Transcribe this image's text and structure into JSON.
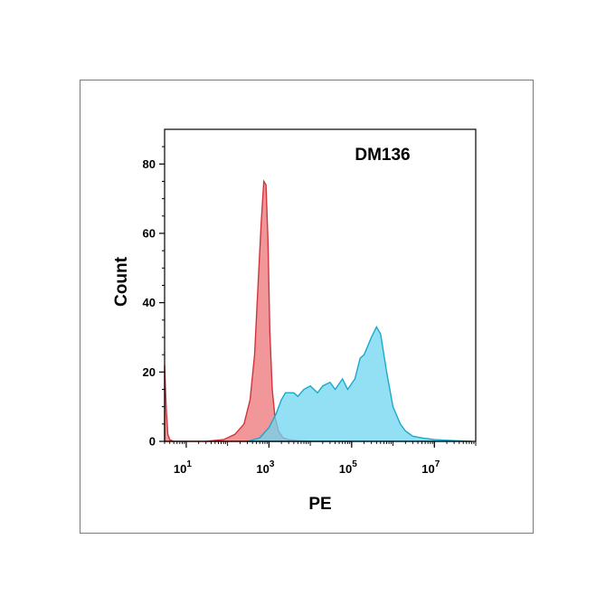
{
  "chart_data": {
    "type": "area",
    "xlabel": "PE",
    "ylabel": "Count",
    "x_scale": "log",
    "xlim": [
      3,
      100000000
    ],
    "ylim": [
      0,
      90
    ],
    "annotation": "DM136",
    "x_ticks": [
      {
        "value": 10,
        "base": "10",
        "exp": "1"
      },
      {
        "value": 1000,
        "base": "10",
        "exp": "3"
      },
      {
        "value": 100000,
        "base": "10",
        "exp": "5"
      },
      {
        "value": 10000000,
        "base": "10",
        "exp": "7"
      }
    ],
    "y_ticks": [
      0,
      20,
      40,
      60,
      80
    ],
    "series": [
      {
        "color": "#f08c8e",
        "edge": "#d0353d",
        "x": [
          3,
          3.3,
          3.6,
          4,
          5,
          10,
          30,
          80,
          150,
          250,
          350,
          450,
          550,
          650,
          750,
          850,
          950,
          1050,
          1200,
          1400,
          1700,
          2200,
          3000,
          5000,
          10000,
          30000,
          100000
        ],
        "y": [
          22,
          9,
          2,
          0.5,
          0,
          0,
          0,
          0.5,
          2,
          5,
          12,
          25,
          46,
          63,
          75,
          74,
          58,
          32,
          15,
          7,
          3,
          1,
          0.5,
          0.2,
          0,
          0,
          0
        ]
      },
      {
        "color": "#6fd6f0",
        "edge": "#1aa9c9",
        "x": [
          300,
          600,
          1000,
          1500,
          2000,
          2500,
          3000,
          4000,
          5000,
          7000,
          10000,
          15000,
          20000,
          30000,
          40000,
          60000,
          80000,
          120000,
          160000,
          200000,
          300000,
          400000,
          500000,
          700000,
          1000000,
          1500000,
          2000000,
          3000000,
          5000000,
          10000000,
          30000000,
          80000000
        ],
        "y": [
          0,
          1,
          4,
          8,
          12,
          14,
          14,
          14,
          13,
          15,
          16,
          14,
          16,
          17,
          15,
          18,
          15,
          18,
          24,
          25,
          30,
          33,
          31,
          20,
          10,
          5,
          3,
          1.5,
          1,
          0.5,
          0.2,
          0
        ]
      }
    ]
  }
}
